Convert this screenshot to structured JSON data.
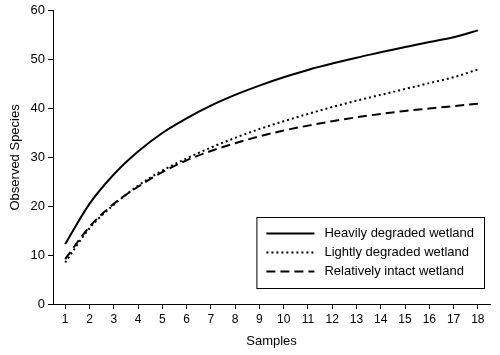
{
  "chart_data": {
    "type": "line",
    "x_label": "Samples",
    "y_label": "Observed Species",
    "categories": [
      1,
      2,
      3,
      4,
      5,
      6,
      7,
      8,
      9,
      10,
      11,
      12,
      13,
      14,
      15,
      16,
      17,
      18
    ],
    "series": [
      {
        "name": "Heavily degraded wetland",
        "color": "#000000",
        "line_style": "solid",
        "values": [
          12.3,
          20.5,
          26.5,
          31.2,
          35,
          38,
          40.6,
          42.8,
          44.7,
          46.4,
          47.9,
          49.2,
          50.4,
          51.5,
          52.6,
          53.6,
          54.6,
          56
        ]
      },
      {
        "name": "Lightly degraded wetland",
        "color": "#000000",
        "line_style": "dotted",
        "values": [
          8.5,
          15.5,
          20.3,
          24.2,
          27.3,
          29.8,
          32,
          34,
          35.8,
          37.4,
          38.9,
          40.3,
          41.6,
          42.8,
          44,
          45.2,
          46.4,
          48
        ]
      },
      {
        "name": "Relatively intact wetland",
        "color": "#000000",
        "line_style": "dashed",
        "values": [
          9.2,
          15.8,
          20.5,
          24,
          27,
          29.4,
          31.3,
          32.9,
          34.3,
          35.5,
          36.5,
          37.4,
          38.2,
          38.9,
          39.5,
          40,
          40.5,
          41
        ]
      }
    ],
    "ylim": [
      0,
      60
    ],
    "yticks": [
      0,
      10,
      20,
      30,
      40,
      50,
      60
    ],
    "grid": false,
    "legend": "lower right"
  }
}
